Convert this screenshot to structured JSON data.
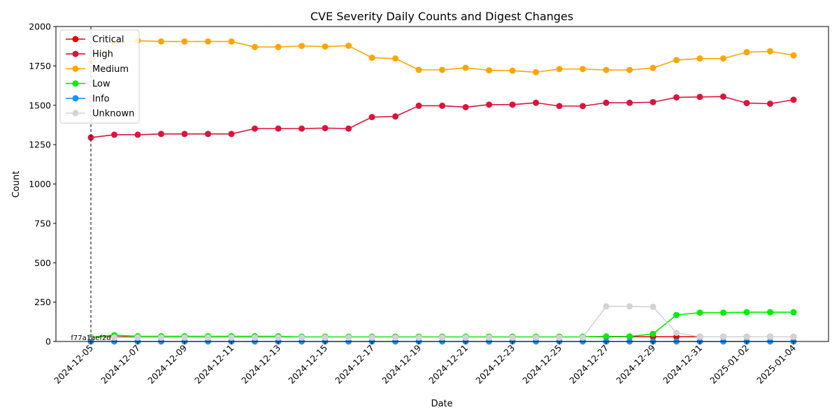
{
  "chart_data": {
    "type": "line",
    "title": "CVE Severity Daily Counts and Digest Changes",
    "xlabel": "Date",
    "ylabel": "Count",
    "ylim": [
      0,
      2000
    ],
    "yticks": [
      0,
      250,
      500,
      750,
      1000,
      1250,
      1500,
      1750,
      2000
    ],
    "xticks": [
      "2024-12-05",
      "2024-12-07",
      "2024-12-09",
      "2024-12-11",
      "2024-12-13",
      "2024-12-15",
      "2024-12-17",
      "2024-12-19",
      "2024-12-21",
      "2024-12-23",
      "2024-12-25",
      "2024-12-27",
      "2024-12-29",
      "2024-12-31",
      "2025-01-02",
      "2025-01-04"
    ],
    "x": [
      "2024-12-05",
      "2024-12-06",
      "2024-12-07",
      "2024-12-08",
      "2024-12-09",
      "2024-12-10",
      "2024-12-11",
      "2024-12-12",
      "2024-12-13",
      "2024-12-14",
      "2024-12-15",
      "2024-12-16",
      "2024-12-17",
      "2024-12-18",
      "2024-12-19",
      "2024-12-20",
      "2024-12-21",
      "2024-12-22",
      "2024-12-23",
      "2024-12-24",
      "2024-12-25",
      "2024-12-26",
      "2024-12-27",
      "2024-12-28",
      "2024-12-29",
      "2024-12-30",
      "2024-12-31",
      "2025-01-01",
      "2025-01-02",
      "2025-01-03",
      "2025-01-04"
    ],
    "legend_position": "top-left",
    "grid": false,
    "series": [
      {
        "name": "Critical",
        "color": "#e00000",
        "values": [
          27,
          30,
          30,
          30,
          30,
          30,
          30,
          30,
          30,
          30,
          30,
          30,
          30,
          30,
          30,
          30,
          30,
          30,
          30,
          30,
          30,
          30,
          30,
          30,
          30,
          30,
          30,
          30,
          30,
          30,
          30
        ]
      },
      {
        "name": "High",
        "color": "#dc143c",
        "values": [
          1295,
          1313,
          1313,
          1318,
          1318,
          1318,
          1318,
          1352,
          1352,
          1352,
          1355,
          1352,
          1425,
          1429,
          1497,
          1497,
          1488,
          1504,
          1504,
          1516,
          1495,
          1495,
          1516,
          1516,
          1520,
          1550,
          1553,
          1555,
          1514,
          1510,
          1535
        ]
      },
      {
        "name": "Medium",
        "color": "#ffa500",
        "values": [
          1780,
          1895,
          1910,
          1905,
          1905,
          1905,
          1905,
          1870,
          1870,
          1877,
          1873,
          1878,
          1802,
          1797,
          1725,
          1725,
          1738,
          1722,
          1720,
          1710,
          1730,
          1730,
          1724,
          1724,
          1737,
          1787,
          1797,
          1797,
          1837,
          1843,
          1817
        ]
      },
      {
        "name": "Low",
        "color": "#00ee00",
        "values": [
          28,
          40,
          33,
          33,
          33,
          33,
          33,
          33,
          33,
          30,
          30,
          30,
          30,
          30,
          30,
          30,
          30,
          30,
          30,
          30,
          30,
          30,
          32,
          32,
          48,
          168,
          183,
          183,
          186,
          186,
          186
        ]
      },
      {
        "name": "Info",
        "color": "#1e90ff",
        "values": [
          0,
          0,
          0,
          0,
          0,
          0,
          0,
          0,
          0,
          0,
          0,
          0,
          0,
          0,
          0,
          0,
          0,
          0,
          0,
          0,
          0,
          0,
          0,
          0,
          0,
          0,
          0,
          0,
          0,
          0,
          0
        ]
      },
      {
        "name": "Unknown",
        "color": "#d3d3d3",
        "values": [
          25,
          25,
          25,
          25,
          25,
          25,
          25,
          25,
          25,
          25,
          25,
          25,
          25,
          25,
          25,
          25,
          25,
          25,
          25,
          25,
          25,
          25,
          223,
          223,
          220,
          55,
          30,
          30,
          30,
          30,
          30
        ]
      }
    ],
    "annotations": [
      {
        "date": "2024-12-05",
        "label": "f77a1aef2d",
        "style": "dashed-vertical-line"
      }
    ]
  }
}
